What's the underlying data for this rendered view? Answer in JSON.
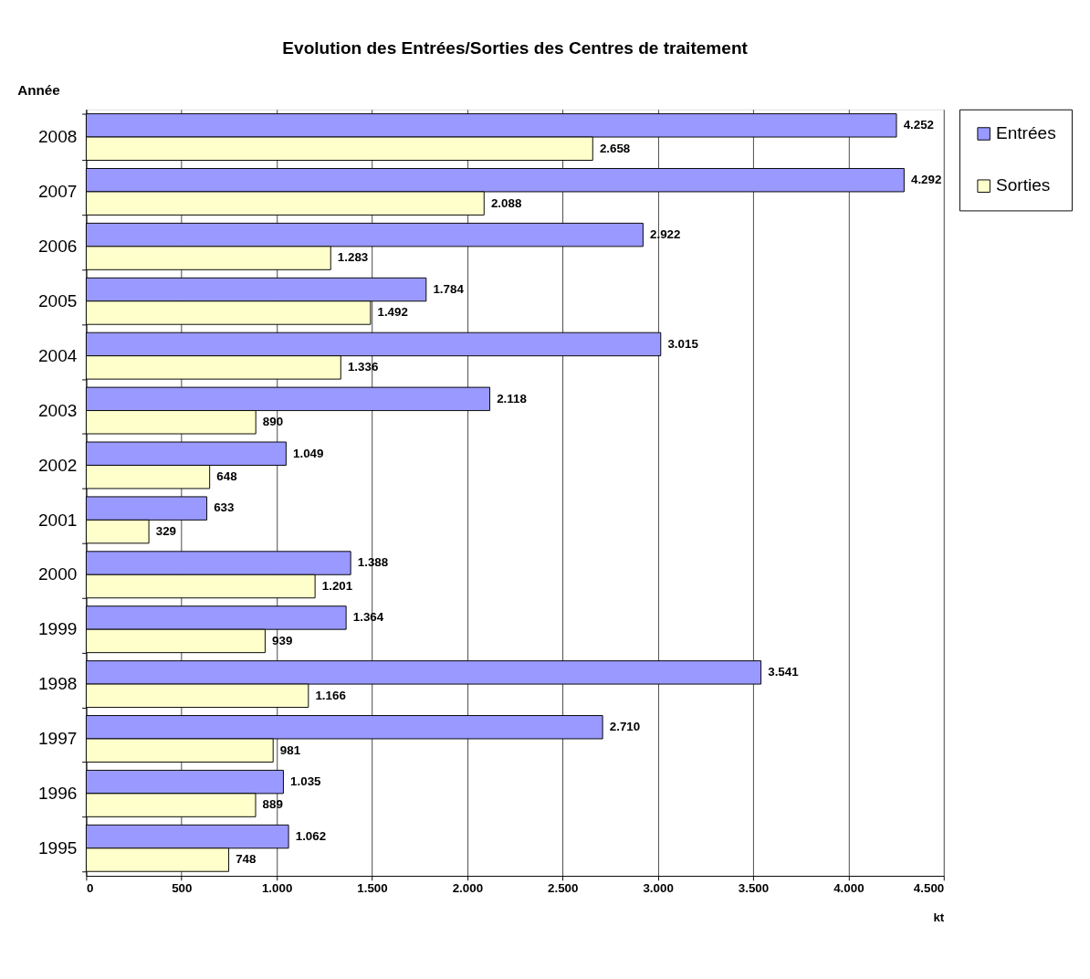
{
  "chart_data": {
    "type": "bar",
    "orientation": "horizontal",
    "title": "Evolution des Entrées/Sorties des Centres de traitement",
    "xlabel": "kt",
    "ylabel": "Année",
    "categories": [
      "2008",
      "2007",
      "2006",
      "2005",
      "2004",
      "2003",
      "2002",
      "2001",
      "2000",
      "1999",
      "1998",
      "1997",
      "1996",
      "1995"
    ],
    "series": [
      {
        "name": "Entrées",
        "color": "#9999ff",
        "values": [
          4252,
          4292,
          2922,
          1784,
          3015,
          2118,
          1049,
          633,
          1388,
          1364,
          3541,
          2710,
          1035,
          1062
        ],
        "value_labels": [
          "4.252",
          "4.292",
          "2.922",
          "1.784",
          "3.015",
          "2.118",
          "1.049",
          "633",
          "1.388",
          "1.364",
          "3.541",
          "2.710",
          "1.035",
          "1.062"
        ]
      },
      {
        "name": "Sorties",
        "color": "#ffffcc",
        "values": [
          2658,
          2088,
          1283,
          1492,
          1336,
          890,
          648,
          329,
          1201,
          939,
          1166,
          981,
          889,
          748
        ],
        "value_labels": [
          "2.658",
          "2.088",
          "1.283",
          "1.492",
          "1.336",
          "890",
          "648",
          "329",
          "1.201",
          "939",
          "1.166",
          "981",
          "889",
          "748"
        ]
      }
    ],
    "xlim": [
      0,
      4500
    ],
    "xticks": [
      0,
      500,
      {
        "value": 1000,
        "label": "1.000"
      },
      {
        "value": 1500,
        "label": "1.500"
      },
      {
        "value": 2000,
        "label": "2.000"
      },
      {
        "value": 2500,
        "label": "2.500"
      },
      {
        "value": 3000,
        "label": "3.000"
      },
      {
        "value": 3500,
        "label": "3.500"
      },
      {
        "value": 4000,
        "label": "4.000"
      },
      {
        "value": 4500,
        "label": "4.500"
      }
    ],
    "grid": "x",
    "legend": "right"
  }
}
